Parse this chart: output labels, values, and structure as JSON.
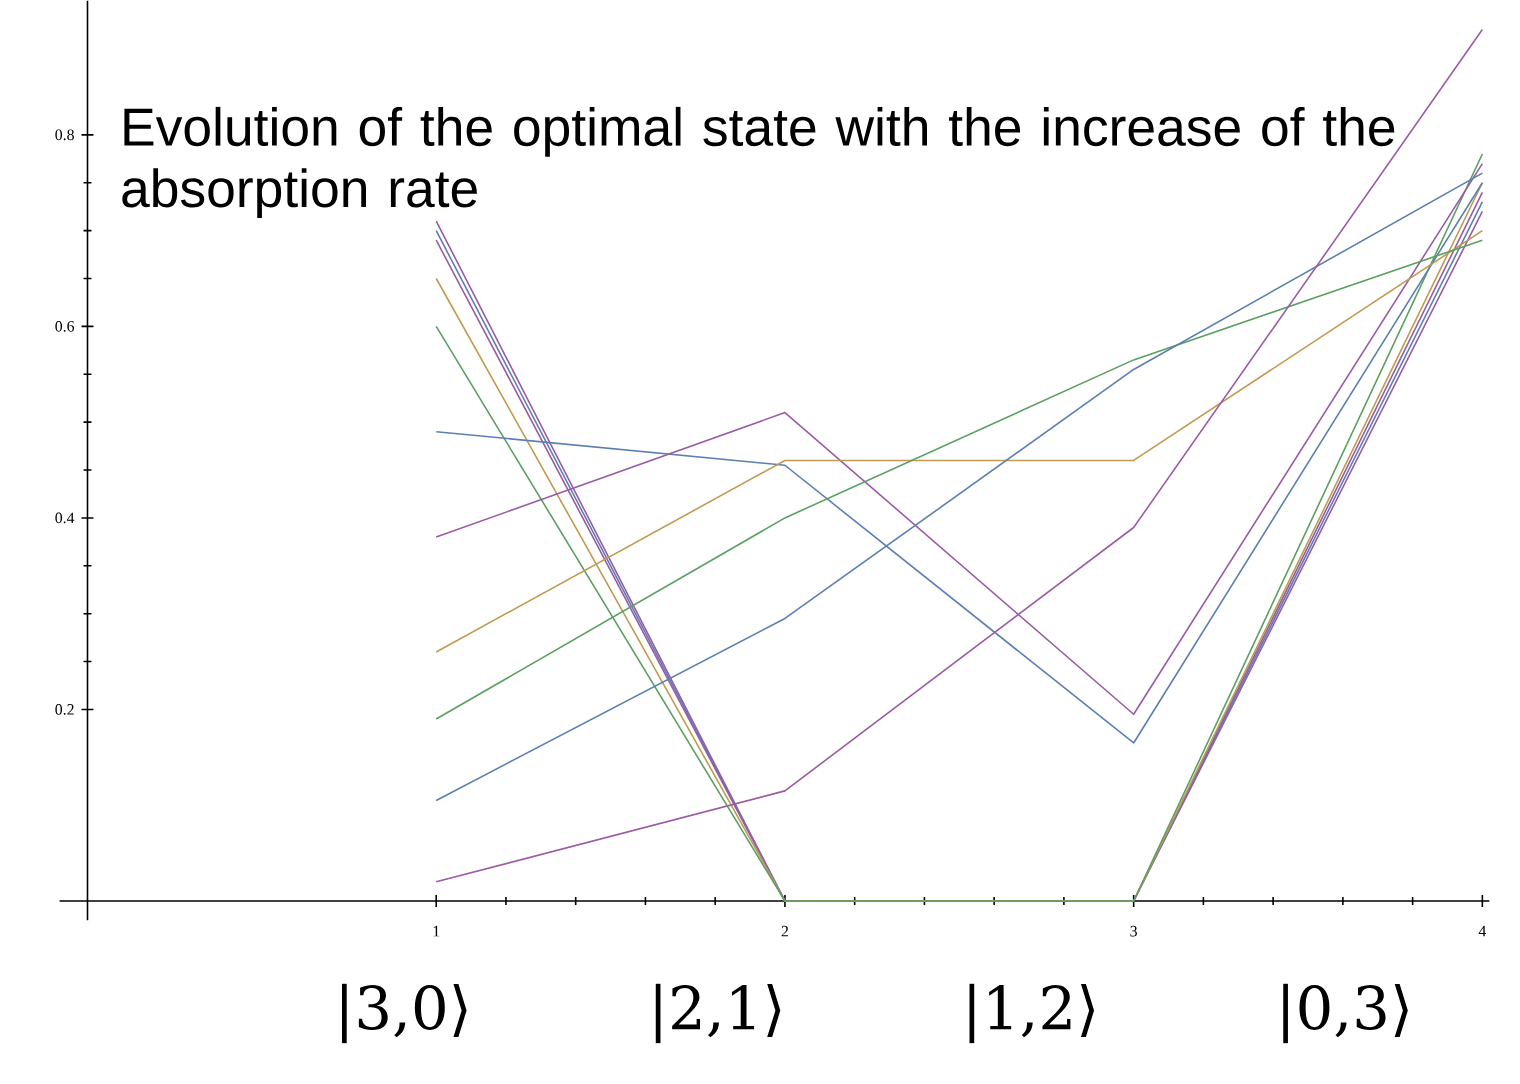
{
  "chart_data": {
    "type": "line",
    "title": "Evolution of the optimal state with the increase of the absorption rate",
    "x": [
      1,
      2,
      3,
      4
    ],
    "series": [
      {
        "color": "#9a5aa6",
        "values": [
          0.71,
          0,
          0,
          0.72
        ]
      },
      {
        "color": "#5b7fb0",
        "values": [
          0.7,
          0,
          0,
          0.73
        ]
      },
      {
        "color": "#9a5aa6",
        "values": [
          0.69,
          0,
          0,
          0.74
        ]
      },
      {
        "color": "#c09a50",
        "values": [
          0.65,
          0,
          0,
          0.75
        ]
      },
      {
        "color": "#5aa060",
        "values": [
          0.6,
          0,
          0,
          0.78
        ]
      },
      {
        "color": "#5b7fb0",
        "values": [
          0.49,
          0.455,
          0.165,
          0.75
        ]
      },
      {
        "color": "#9a5aa6",
        "values": [
          0.38,
          0.51,
          0.195,
          0.77
        ]
      },
      {
        "color": "#c09a50",
        "values": [
          0.26,
          0.46,
          0.46,
          0.7
        ]
      },
      {
        "color": "#5aa060",
        "values": [
          0.19,
          0.4,
          0.565,
          0.69
        ]
      },
      {
        "color": "#5b7fb0",
        "values": [
          0.105,
          0.295,
          0.555,
          0.76
        ]
      },
      {
        "color": "#9a5aa6",
        "values": [
          0.02,
          0.115,
          0.39,
          0.91
        ]
      }
    ],
    "xlim": [
      -0.08,
      4.02
    ],
    "ylim": [
      -0.02,
      0.94
    ],
    "xticks": [
      1,
      2,
      3,
      4
    ],
    "yticks": [
      0.2,
      0.4,
      0.6,
      0.8
    ],
    "grid": false,
    "marker": "none",
    "line_style": "solid",
    "annotations": [
      "|3,0⟩",
      "|2,1⟩",
      "|1,2⟩",
      "|0,3⟩"
    ]
  }
}
